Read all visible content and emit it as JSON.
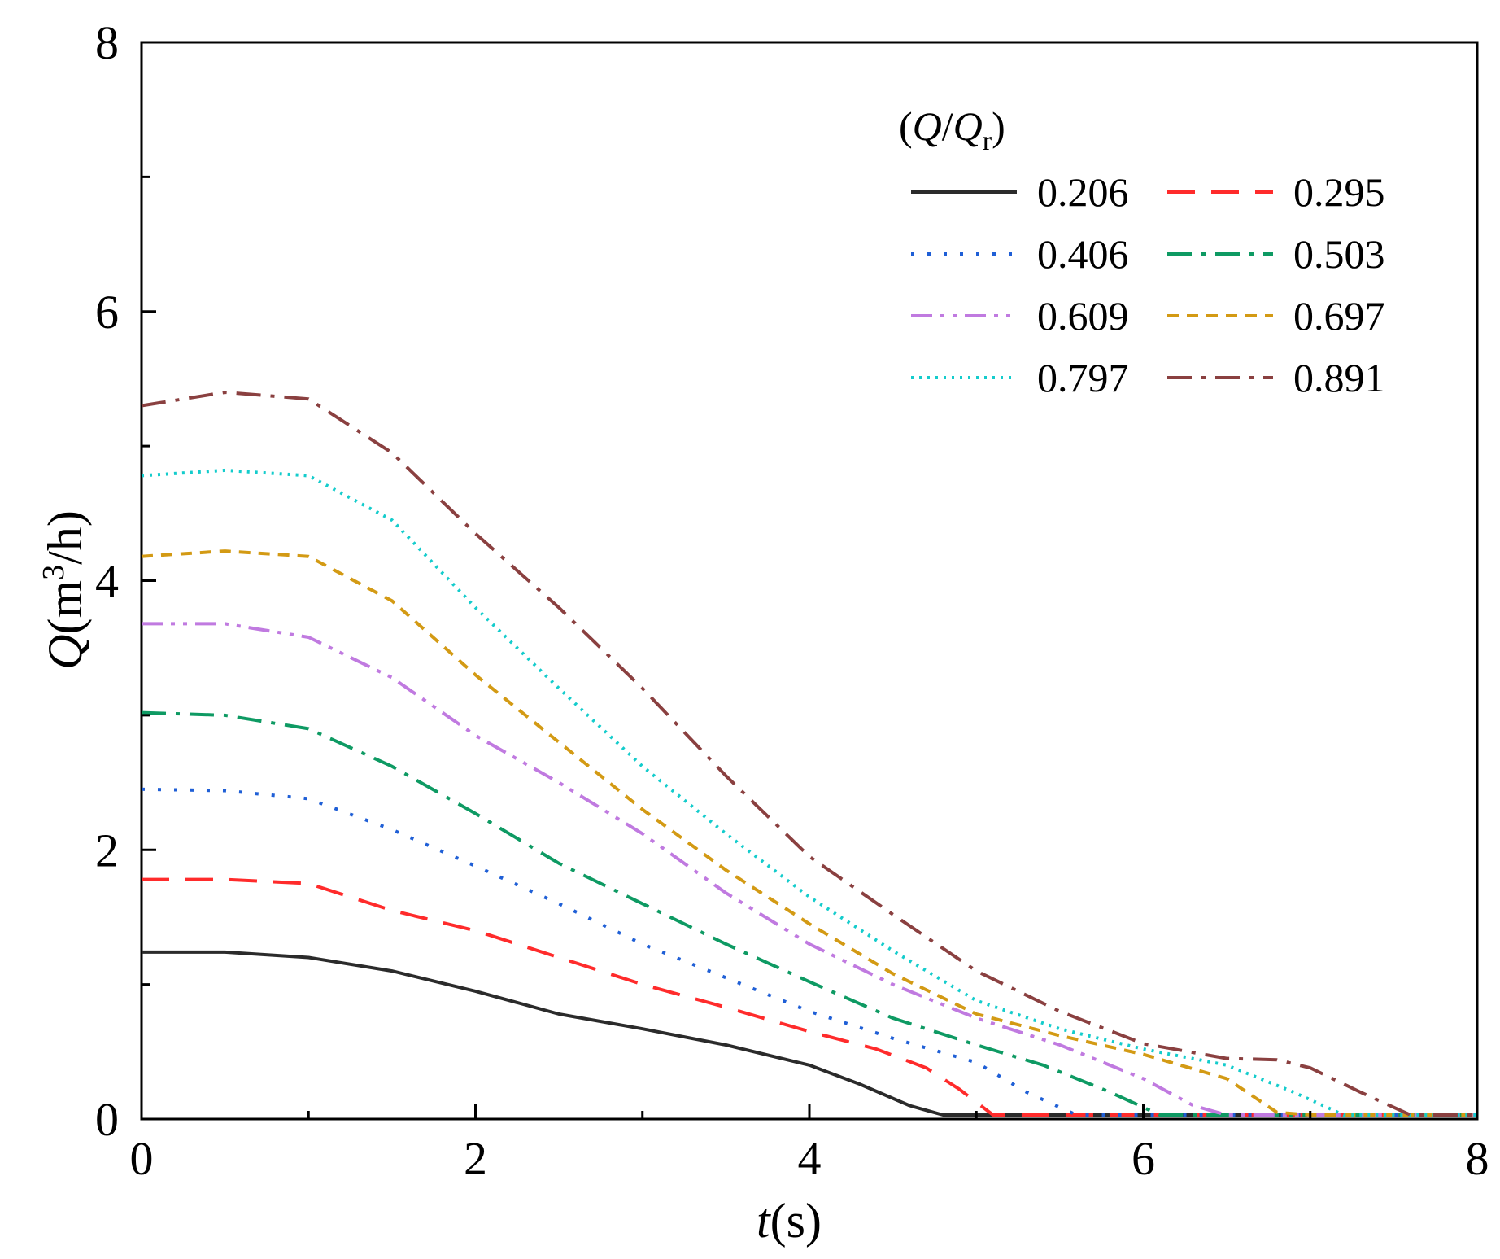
{
  "chart_data": {
    "type": "line",
    "title": "",
    "xlabel": {
      "var": "t",
      "unit": "(s)"
    },
    "ylabel": {
      "var": "Q",
      "unit_prefix": "(m",
      "unit_sup": "3",
      "unit_suffix": "/h)"
    },
    "xlim": [
      0,
      8
    ],
    "ylim": [
      0,
      8
    ],
    "xticks": [
      "0",
      "2",
      "4",
      "6",
      "8"
    ],
    "yticks": [
      "0",
      "2",
      "4",
      "6",
      "8"
    ],
    "grid": false,
    "legend": {
      "title_var": "Q",
      "title_sub_var": "Q",
      "title_sub": "r",
      "position": "top-right",
      "columns": 2
    },
    "series": [
      {
        "name": "0.206",
        "color": "#2b2b2b",
        "dash": "solid",
        "x": [
          0,
          0.5,
          1,
          1.5,
          2,
          2.5,
          3,
          3.5,
          4,
          4.3,
          4.6,
          4.8,
          4.9,
          5.5,
          6,
          7,
          8
        ],
        "y": [
          1.24,
          1.24,
          1.2,
          1.1,
          0.95,
          0.78,
          0.67,
          0.55,
          0.4,
          0.26,
          0.1,
          0.03,
          0.03,
          0.03,
          0.03,
          0.03,
          0.03
        ]
      },
      {
        "name": "0.295",
        "color": "#ff2b2b",
        "dash": "dashed",
        "x": [
          0,
          0.5,
          1,
          1.5,
          2,
          2.5,
          3,
          3.5,
          4,
          4.4,
          4.7,
          4.9,
          5.1,
          5.5,
          6,
          7,
          8
        ],
        "y": [
          1.78,
          1.78,
          1.75,
          1.55,
          1.4,
          1.2,
          1.0,
          0.83,
          0.65,
          0.52,
          0.38,
          0.22,
          0.03,
          0.03,
          0.03,
          0.03,
          0.03
        ]
      },
      {
        "name": "0.406",
        "color": "#1f5fd6",
        "dash": "dotted",
        "x": [
          0,
          0.5,
          1,
          1.5,
          2,
          2.5,
          3,
          3.5,
          4,
          4.5,
          5,
          5.3,
          5.6,
          6,
          7,
          8
        ],
        "y": [
          2.45,
          2.44,
          2.38,
          2.15,
          1.88,
          1.6,
          1.3,
          1.05,
          0.8,
          0.6,
          0.42,
          0.2,
          0.03,
          0.03,
          0.03,
          0.03
        ]
      },
      {
        "name": "0.503",
        "color": "#0e9a63",
        "dash": "dashdot",
        "x": [
          0,
          0.5,
          1,
          1.5,
          2,
          2.5,
          3,
          3.5,
          4,
          4.5,
          5,
          5.4,
          5.8,
          6.1,
          7,
          8
        ],
        "y": [
          3.02,
          3.0,
          2.9,
          2.62,
          2.27,
          1.9,
          1.6,
          1.3,
          1.02,
          0.75,
          0.55,
          0.4,
          0.2,
          0.03,
          0.03,
          0.03
        ]
      },
      {
        "name": "0.609",
        "color": "#c07ae0",
        "dash": "dashdotdot",
        "x": [
          0,
          0.5,
          1,
          1.5,
          2,
          2.5,
          3,
          3.5,
          4,
          4.5,
          5,
          5.5,
          6,
          6.3,
          6.5,
          7,
          8
        ],
        "y": [
          3.68,
          3.68,
          3.58,
          3.28,
          2.85,
          2.5,
          2.12,
          1.68,
          1.3,
          1.0,
          0.75,
          0.55,
          0.3,
          0.1,
          0.03,
          0.03,
          0.03
        ]
      },
      {
        "name": "0.697",
        "color": "#d39a14",
        "dash": "shortdash",
        "x": [
          0,
          0.5,
          1,
          1.5,
          2,
          2.5,
          3,
          3.5,
          4,
          4.5,
          5,
          5.5,
          6,
          6.5,
          6.8,
          7,
          8
        ],
        "y": [
          4.18,
          4.22,
          4.18,
          3.85,
          3.3,
          2.8,
          2.3,
          1.85,
          1.45,
          1.08,
          0.78,
          0.62,
          0.48,
          0.3,
          0.05,
          0.03,
          0.03
        ]
      },
      {
        "name": "0.797",
        "color": "#14cccc",
        "dash": "densedot",
        "x": [
          0,
          0.5,
          1,
          1.5,
          2,
          2.5,
          3,
          3.5,
          4,
          4.5,
          5,
          5.5,
          6,
          6.5,
          6.9,
          7.2,
          8
        ],
        "y": [
          4.78,
          4.82,
          4.78,
          4.45,
          3.8,
          3.2,
          2.62,
          2.12,
          1.65,
          1.25,
          0.88,
          0.67,
          0.52,
          0.4,
          0.2,
          0.03,
          0.03
        ]
      },
      {
        "name": "0.891",
        "color": "#8a4040",
        "dash": "dashdot",
        "x": [
          0,
          0.5,
          1,
          1.5,
          2,
          2.5,
          3,
          3.5,
          4,
          4.5,
          5,
          5.5,
          6,
          6.5,
          6.8,
          7,
          7.3,
          7.6,
          8
        ],
        "y": [
          5.3,
          5.4,
          5.35,
          4.95,
          4.35,
          3.8,
          3.2,
          2.55,
          1.95,
          1.52,
          1.1,
          0.8,
          0.56,
          0.45,
          0.44,
          0.38,
          0.2,
          0.03,
          0.03
        ]
      }
    ]
  }
}
